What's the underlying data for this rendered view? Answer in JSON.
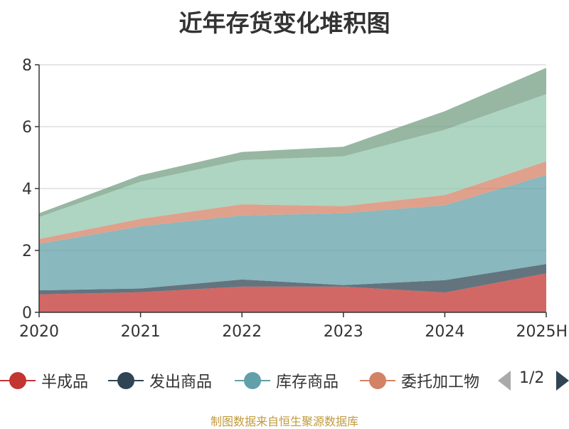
{
  "title": "近年存货变化堆积图",
  "source_note": "制图数据来自恒生聚源数据库",
  "legend_pager": "1/2",
  "chart_data": {
    "type": "area",
    "stacked": true,
    "title": "近年存货变化堆积图",
    "categories": [
      "2020",
      "2021",
      "2022",
      "2023",
      "2024",
      "2025H"
    ],
    "ylim": [
      0,
      8
    ],
    "yticks": [
      0,
      2,
      4,
      6,
      8
    ],
    "grid": true,
    "legend_position": "bottom",
    "series": [
      {
        "name": "半成品",
        "color": "#c23531",
        "values": [
          0.58,
          0.65,
          0.83,
          0.83,
          0.64,
          1.26
        ]
      },
      {
        "name": "发出商品",
        "color": "#2f4554",
        "values": [
          0.13,
          0.12,
          0.23,
          0.05,
          0.4,
          0.3
        ]
      },
      {
        "name": "库存商品",
        "color": "#61a0a8",
        "values": [
          1.5,
          2.01,
          2.07,
          2.32,
          2.42,
          2.88
        ]
      },
      {
        "name": "委托加工物资",
        "color": "#d48265",
        "values": [
          0.16,
          0.24,
          0.36,
          0.23,
          0.33,
          0.44
        ]
      },
      {
        "color": "#91c7ae",
        "values": [
          0.71,
          1.2,
          1.43,
          1.61,
          2.11,
          2.17
        ]
      },
      {
        "color": "#749f83",
        "values": [
          0.12,
          0.21,
          0.26,
          0.31,
          0.6,
          0.85
        ]
      }
    ],
    "legend_visible": [
      "半成品",
      "发出商品",
      "库存商品",
      "委托加工物"
    ]
  }
}
